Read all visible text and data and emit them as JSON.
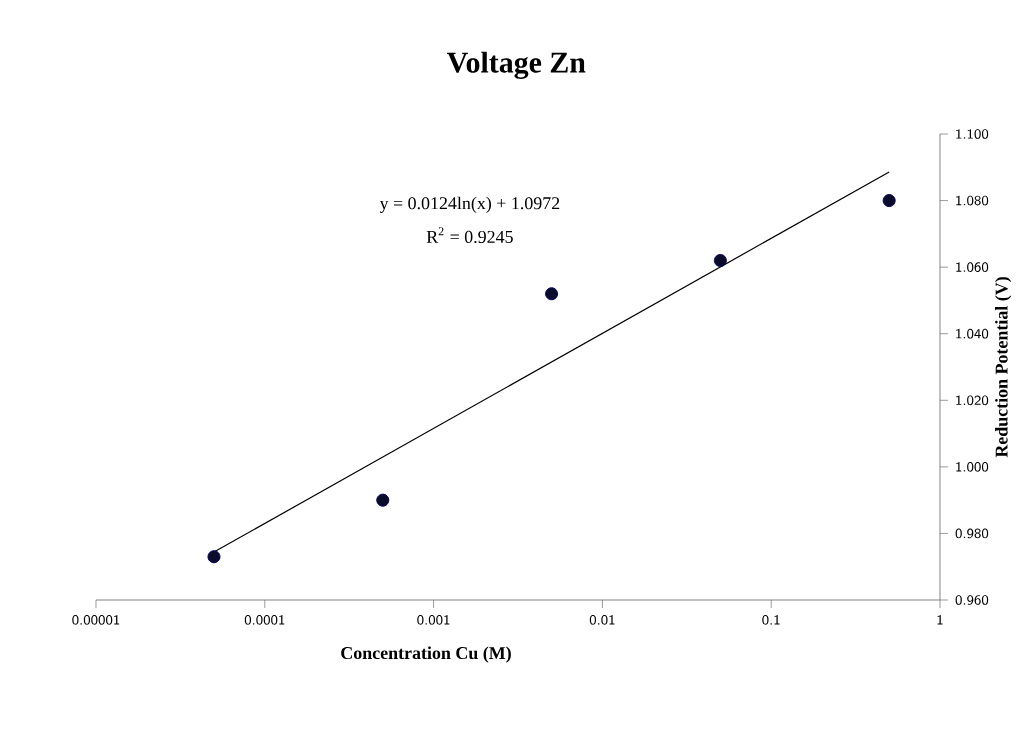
{
  "chart_data": {
    "type": "scatter",
    "title": "Voltage Zn",
    "xlabel": "Concentration Cu (M)",
    "ylabel": "Reduction Potential (V)",
    "log": "x",
    "grid": false,
    "xlim": [
      1e-05,
      1
    ],
    "ylim": [
      0.96,
      1.1
    ],
    "xticks": [
      {
        "value": 1e-05,
        "label": "0.00001"
      },
      {
        "value": 0.0001,
        "label": "0.0001"
      },
      {
        "value": 0.001,
        "label": "0.001"
      },
      {
        "value": 0.01,
        "label": "0.01"
      },
      {
        "value": 0.1,
        "label": "0.1"
      },
      {
        "value": 1,
        "label": "1"
      }
    ],
    "yticks": [
      {
        "value": 0.96,
        "label": "0.960"
      },
      {
        "value": 0.98,
        "label": "0.980"
      },
      {
        "value": 1.0,
        "label": "1.000"
      },
      {
        "value": 1.02,
        "label": "1.020"
      },
      {
        "value": 1.04,
        "label": "1.040"
      },
      {
        "value": 1.06,
        "label": "1.060"
      },
      {
        "value": 1.08,
        "label": "1.080"
      },
      {
        "value": 1.1,
        "label": "1.100"
      }
    ],
    "series": [
      {
        "marker": "circle",
        "color": "#0b0b2a",
        "x": [
          5e-05,
          0.0005,
          0.005,
          0.05,
          0.5
        ],
        "values": [
          0.973,
          0.99,
          1.052,
          1.062,
          1.08
        ]
      },
      {
        "type": "line",
        "marker": "none",
        "color": "#000000",
        "x": [
          5e-05,
          0.5
        ],
        "values": [
          0.9744,
          1.0886
        ]
      }
    ],
    "annotations": [
      "y = 0.0124ln(x)  + 1.0972",
      "R$^{2}$ = 0.9245"
    ]
  }
}
